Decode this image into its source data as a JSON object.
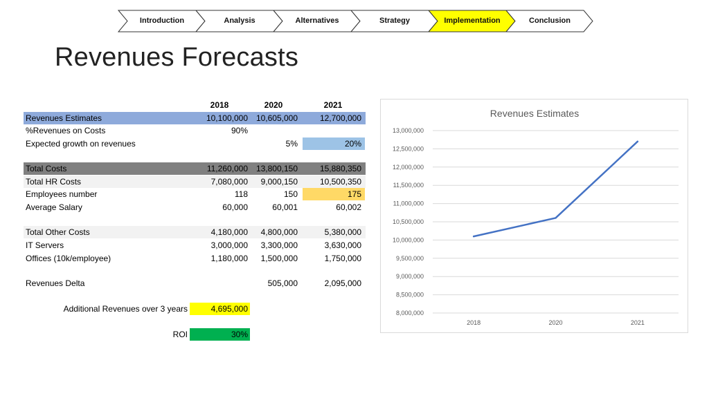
{
  "nav": {
    "items": [
      {
        "label": "Introduction",
        "active": false
      },
      {
        "label": "Analysis",
        "active": false
      },
      {
        "label": "Alternatives",
        "active": false
      },
      {
        "label": "Strategy",
        "active": false
      },
      {
        "label": "Implementation",
        "active": true
      },
      {
        "label": "Conclusion",
        "active": false
      }
    ],
    "active_color": "#ffff00",
    "inactive_color": "#ffffff",
    "border_color": "#333333"
  },
  "title": "Revenues Forecasts",
  "table": {
    "years": [
      "2018",
      "2020",
      "2021"
    ],
    "revenues_estimates": {
      "label": "Revenues Estimates",
      "v2018": "10,100,000",
      "v2020": "10,605,000",
      "v2021": "12,700,000"
    },
    "pct_revenues_on_costs": {
      "label": "%Revenues on Costs",
      "v2018": "90%"
    },
    "expected_growth": {
      "label": "Expected growth on revenues",
      "v2020": "5%",
      "v2021": "20%"
    },
    "total_costs": {
      "label": "Total Costs",
      "v2018": "11,260,000",
      "v2020": "13,800,150",
      "v2021": "15,880,350"
    },
    "total_hr_costs": {
      "label": "Total HR Costs",
      "v2018": "7,080,000",
      "v2020": "9,000,150",
      "v2021": "10,500,350"
    },
    "employees_number": {
      "label": "Employees number",
      "v2018": "118",
      "v2020": "150",
      "v2021": "175"
    },
    "average_salary": {
      "label": "Average Salary",
      "v2018": "60,000",
      "v2020": "60,001",
      "v2021": "60,002"
    },
    "total_other_costs": {
      "label": "Total Other Costs",
      "v2018": "4,180,000",
      "v2020": "4,800,000",
      "v2021": "5,380,000"
    },
    "it_servers": {
      "label": "IT Servers",
      "v2018": "3,000,000",
      "v2020": "3,300,000",
      "v2021": "3,630,000"
    },
    "offices": {
      "label": "Offices (10k/employee)",
      "v2018": "1,180,000",
      "v2020": "1,500,000",
      "v2021": "1,750,000"
    },
    "revenues_delta": {
      "label": "Revenues Delta",
      "v2020": "505,000",
      "v2021": "2,095,000"
    },
    "additional_revenues": {
      "label": "Additional Revenues over 3 years",
      "value": "4,695,000"
    },
    "roi": {
      "label": "ROI",
      "value": "30%"
    }
  },
  "chart_data": {
    "type": "line",
    "title": "Revenues Estimates",
    "categories": [
      "2018",
      "2020",
      "2021"
    ],
    "series": [
      {
        "name": "Revenues Estimates",
        "values": [
          10100000,
          10605000,
          12700000
        ],
        "color": "#4472c4"
      }
    ],
    "ylim": [
      8000000,
      13000000
    ],
    "yticks": [
      8000000,
      8500000,
      9000000,
      9500000,
      10000000,
      10500000,
      11000000,
      11500000,
      12000000,
      12500000,
      13000000
    ],
    "grid": true,
    "xlabel": "",
    "ylabel": ""
  }
}
